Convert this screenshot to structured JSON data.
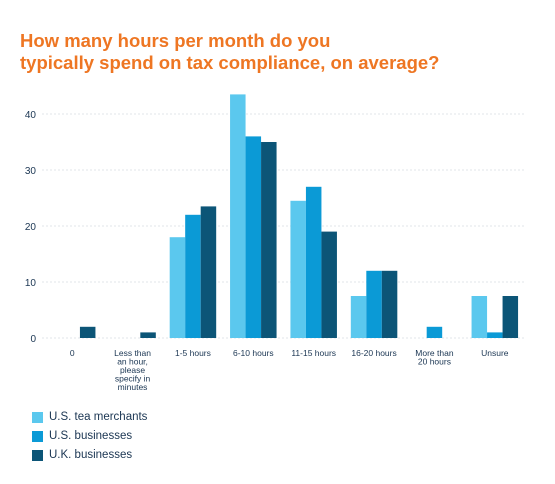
{
  "title_lines": [
    "How many hours per month do you",
    "typically spend on tax compliance, on average?"
  ],
  "colors": {
    "title": "#ee7623",
    "text": "#1a3552",
    "grid": "#d9dce1",
    "series": [
      "#5bc8ee",
      "#0b9ad6",
      "#0c5577"
    ]
  },
  "chart_data": {
    "type": "bar",
    "title": "How many hours per month do you typically spend on tax compliance, on average?",
    "xlabel": "",
    "ylabel": "",
    "ylim": [
      0,
      45
    ],
    "yticks": [
      0,
      10,
      20,
      30,
      40
    ],
    "grid": true,
    "legend_position": "bottom-left",
    "categories": [
      "0",
      "Less than an hour, please specify in minutes",
      "1-5 hours",
      "6-10 hours",
      "11-15 hours",
      "16-20 hours",
      "More than 20 hours",
      "Unsure"
    ],
    "category_label_lines": [
      [
        "0"
      ],
      [
        "Less than",
        "an hour,",
        "please",
        "specify in",
        "minutes"
      ],
      [
        "1-5 hours"
      ],
      [
        "6-10 hours"
      ],
      [
        "11-15 hours"
      ],
      [
        "16-20 hours"
      ],
      [
        "More than",
        "20 hours"
      ],
      [
        "Unsure"
      ]
    ],
    "series": [
      {
        "name": "U.S. tea merchants",
        "values": [
          0,
          0,
          18,
          43.5,
          24.5,
          7.5,
          0,
          7.5
        ]
      },
      {
        "name": "U.S. businesses",
        "values": [
          0,
          0,
          22,
          36,
          27,
          12,
          2,
          1
        ]
      },
      {
        "name": "U.K. businesses",
        "values": [
          2,
          1,
          23.5,
          35,
          19,
          12,
          0,
          7.5
        ]
      }
    ]
  }
}
